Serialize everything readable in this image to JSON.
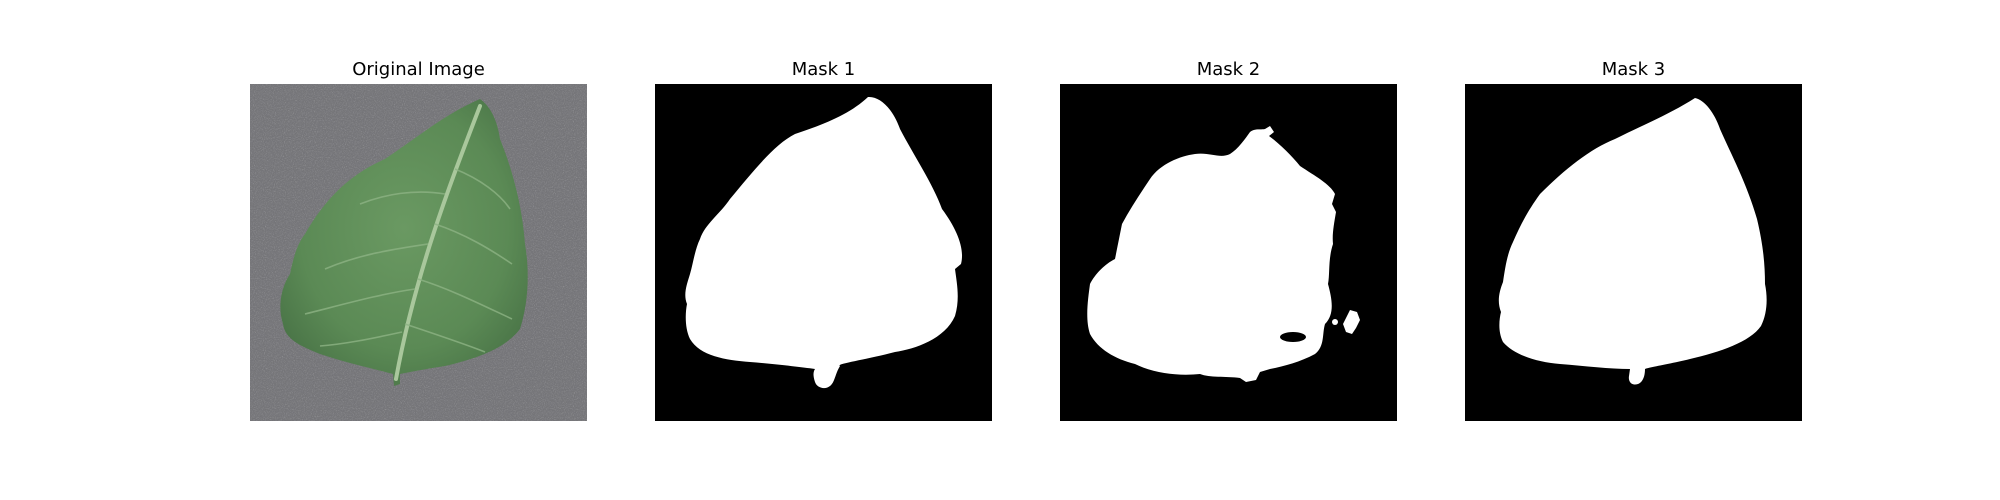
{
  "figure": {
    "panels": [
      {
        "title": "Original Image",
        "kind": "photo",
        "subject": "green leaf on gray textured background"
      },
      {
        "title": "Mask 1",
        "kind": "binary-mask"
      },
      {
        "title": "Mask 2",
        "kind": "binary-mask"
      },
      {
        "title": "Mask 3",
        "kind": "binary-mask"
      }
    ]
  },
  "colors": {
    "mask_background": "#000000",
    "mask_foreground": "#ffffff",
    "photo_background": "#77777b",
    "leaf_green": "#5b8a55",
    "leaf_vein": "#a9c79c"
  }
}
